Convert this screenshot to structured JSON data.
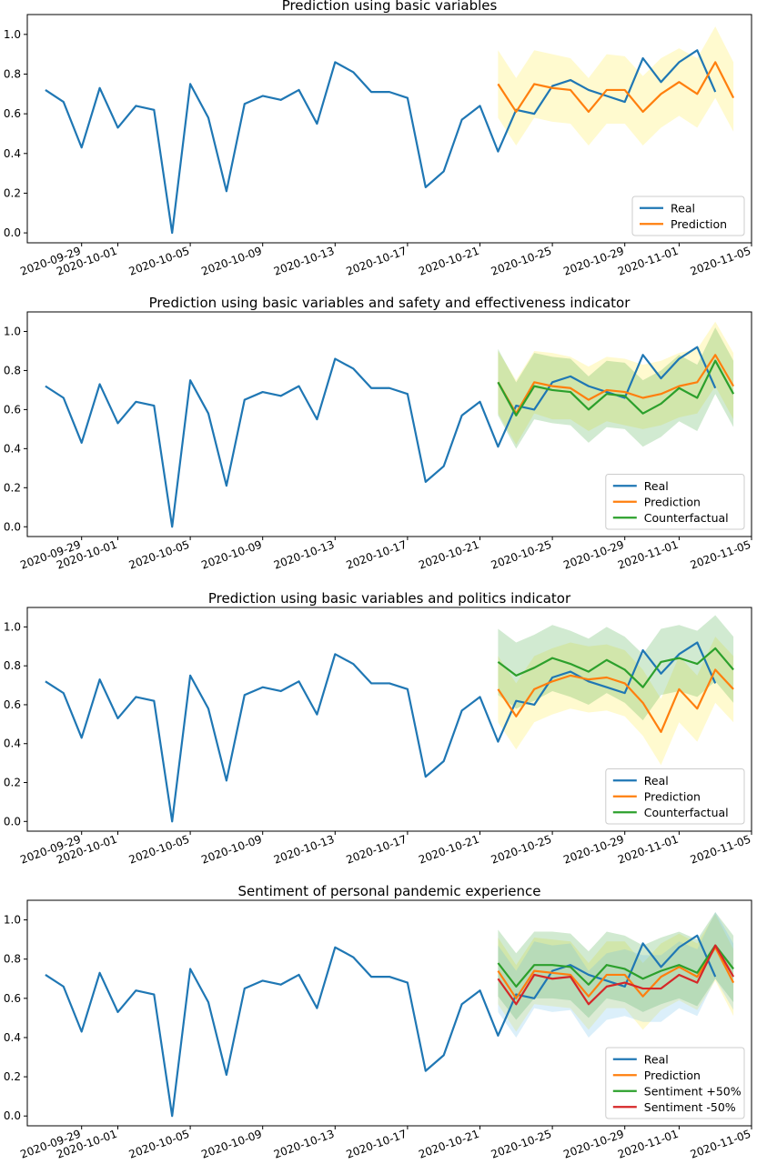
{
  "chart_data": [
    {
      "type": "line",
      "title": "Prediction using basic variables",
      "xlabel": "",
      "ylabel": "",
      "x_range": [
        "2020-09-26",
        "2020-11-05"
      ],
      "ylim": [
        -0.05,
        1.1
      ],
      "yticks": [
        "0.0",
        "0.2",
        "0.4",
        "0.6",
        "0.8",
        "1.0"
      ],
      "xticks": [
        "2020-09-29",
        "2020-10-01",
        "2020-10-05",
        "2020-10-09",
        "2020-10-13",
        "2020-10-17",
        "2020-10-21",
        "2020-10-25",
        "2020-10-29",
        "2020-11-01",
        "2020-11-05"
      ],
      "legend_position": "lower-right",
      "series": [
        {
          "name": "Real",
          "color": "#1f77b4",
          "start": "2020-09-27",
          "values": [
            0.72,
            0.66,
            0.43,
            0.73,
            0.53,
            0.64,
            0.62,
            0.0,
            0.75,
            0.58,
            0.21,
            0.65,
            0.69,
            0.67,
            0.72,
            0.55,
            0.86,
            0.81,
            0.71,
            0.71,
            0.68,
            0.23,
            0.31,
            0.57,
            0.64,
            0.41,
            0.62,
            0.6,
            0.74,
            0.77,
            0.72,
            0.69,
            0.66,
            0.88,
            0.76,
            0.86,
            0.92,
            0.71
          ]
        },
        {
          "name": "Prediction",
          "color": "#ff7f0e",
          "start": "2020-10-22",
          "values": [
            0.75,
            0.61,
            0.75,
            0.73,
            0.72,
            0.61,
            0.72,
            0.72,
            0.61,
            0.7,
            0.76,
            0.7,
            0.86,
            0.68
          ],
          "band": {
            "color": "#fde725",
            "opacity": 0.22,
            "upper": [
              0.92,
              0.78,
              0.92,
              0.9,
              0.88,
              0.78,
              0.9,
              0.89,
              0.79,
              0.88,
              0.93,
              0.88,
              1.04,
              0.86
            ],
            "lower": [
              0.58,
              0.44,
              0.58,
              0.56,
              0.55,
              0.44,
              0.55,
              0.55,
              0.44,
              0.53,
              0.59,
              0.53,
              0.68,
              0.51
            ]
          }
        }
      ]
    },
    {
      "type": "line",
      "title": "Prediction using basic variables and safety and effectiveness indicator",
      "xlabel": "",
      "ylabel": "",
      "x_range": [
        "2020-09-26",
        "2020-11-05"
      ],
      "ylim": [
        -0.05,
        1.1
      ],
      "yticks": [
        "0.0",
        "0.2",
        "0.4",
        "0.6",
        "0.8",
        "1.0"
      ],
      "xticks": [
        "2020-09-29",
        "2020-10-01",
        "2020-10-05",
        "2020-10-09",
        "2020-10-13",
        "2020-10-17",
        "2020-10-21",
        "2020-10-25",
        "2020-10-29",
        "2020-11-01",
        "2020-11-05"
      ],
      "legend_position": "lower-right",
      "series": [
        {
          "name": "Real",
          "color": "#1f77b4",
          "start": "2020-09-27",
          "values": [
            0.72,
            0.66,
            0.43,
            0.73,
            0.53,
            0.64,
            0.62,
            0.0,
            0.75,
            0.58,
            0.21,
            0.65,
            0.69,
            0.67,
            0.72,
            0.55,
            0.86,
            0.81,
            0.71,
            0.71,
            0.68,
            0.23,
            0.31,
            0.57,
            0.64,
            0.41,
            0.62,
            0.6,
            0.74,
            0.77,
            0.72,
            0.69,
            0.66,
            0.88,
            0.76,
            0.86,
            0.92,
            0.71
          ]
        },
        {
          "name": "Prediction",
          "color": "#ff7f0e",
          "start": "2020-10-22",
          "values": [
            0.74,
            0.58,
            0.74,
            0.72,
            0.71,
            0.65,
            0.7,
            0.69,
            0.66,
            0.68,
            0.72,
            0.74,
            0.88,
            0.72
          ],
          "band": {
            "color": "#fde725",
            "opacity": 0.22,
            "upper": [
              0.9,
              0.75,
              0.9,
              0.89,
              0.87,
              0.82,
              0.87,
              0.86,
              0.83,
              0.85,
              0.89,
              0.91,
              1.05,
              0.89
            ],
            "lower": [
              0.58,
              0.42,
              0.58,
              0.55,
              0.55,
              0.49,
              0.54,
              0.52,
              0.5,
              0.52,
              0.56,
              0.58,
              0.72,
              0.55
            ]
          }
        },
        {
          "name": "Counterfactual",
          "color": "#2ca02c",
          "start": "2020-10-22",
          "values": [
            0.74,
            0.57,
            0.72,
            0.7,
            0.69,
            0.6,
            0.68,
            0.67,
            0.58,
            0.63,
            0.71,
            0.66,
            0.85,
            0.68
          ],
          "band": {
            "color": "#2ca02c",
            "opacity": 0.22,
            "upper": [
              0.91,
              0.74,
              0.89,
              0.87,
              0.86,
              0.77,
              0.85,
              0.84,
              0.75,
              0.8,
              0.88,
              0.83,
              1.02,
              0.85
            ],
            "lower": [
              0.57,
              0.4,
              0.55,
              0.53,
              0.52,
              0.43,
              0.51,
              0.5,
              0.41,
              0.46,
              0.54,
              0.49,
              0.68,
              0.51
            ]
          }
        }
      ]
    },
    {
      "type": "line",
      "title": "Prediction using basic variables and politics indicator",
      "xlabel": "",
      "ylabel": "",
      "x_range": [
        "2020-09-26",
        "2020-11-05"
      ],
      "ylim": [
        -0.05,
        1.1
      ],
      "yticks": [
        "0.0",
        "0.2",
        "0.4",
        "0.6",
        "0.8",
        "1.0"
      ],
      "xticks": [
        "2020-09-29",
        "2020-10-01",
        "2020-10-05",
        "2020-10-09",
        "2020-10-13",
        "2020-10-17",
        "2020-10-21",
        "2020-10-25",
        "2020-10-29",
        "2020-11-01",
        "2020-11-05"
      ],
      "legend_position": "lower-right",
      "series": [
        {
          "name": "Real",
          "color": "#1f77b4",
          "start": "2020-09-27",
          "values": [
            0.72,
            0.66,
            0.43,
            0.73,
            0.53,
            0.64,
            0.62,
            0.0,
            0.75,
            0.58,
            0.21,
            0.65,
            0.69,
            0.67,
            0.72,
            0.55,
            0.86,
            0.81,
            0.71,
            0.71,
            0.68,
            0.23,
            0.31,
            0.57,
            0.64,
            0.41,
            0.62,
            0.6,
            0.74,
            0.77,
            0.72,
            0.69,
            0.66,
            0.88,
            0.76,
            0.86,
            0.92,
            0.71
          ]
        },
        {
          "name": "Prediction",
          "color": "#ff7f0e",
          "start": "2020-10-22",
          "values": [
            0.68,
            0.54,
            0.68,
            0.72,
            0.75,
            0.73,
            0.74,
            0.71,
            0.61,
            0.46,
            0.68,
            0.58,
            0.78,
            0.68
          ],
          "band": {
            "color": "#fde725",
            "opacity": 0.22,
            "upper": [
              0.85,
              0.71,
              0.85,
              0.89,
              0.92,
              0.9,
              0.91,
              0.88,
              0.78,
              0.63,
              0.85,
              0.75,
              0.95,
              0.85
            ],
            "lower": [
              0.51,
              0.37,
              0.51,
              0.55,
              0.58,
              0.56,
              0.57,
              0.54,
              0.44,
              0.29,
              0.51,
              0.41,
              0.61,
              0.51
            ]
          }
        },
        {
          "name": "Counterfactual",
          "color": "#2ca02c",
          "start": "2020-10-22",
          "values": [
            0.82,
            0.75,
            0.79,
            0.84,
            0.81,
            0.77,
            0.83,
            0.78,
            0.69,
            0.82,
            0.84,
            0.81,
            0.89,
            0.78
          ],
          "band": {
            "color": "#2ca02c",
            "opacity": 0.22,
            "upper": [
              0.99,
              0.92,
              0.96,
              1.01,
              0.98,
              0.94,
              1.0,
              0.95,
              0.86,
              0.99,
              1.01,
              0.98,
              1.06,
              0.95
            ],
            "lower": [
              0.65,
              0.58,
              0.62,
              0.67,
              0.64,
              0.6,
              0.66,
              0.61,
              0.52,
              0.65,
              0.67,
              0.64,
              0.72,
              0.61
            ]
          }
        }
      ]
    },
    {
      "type": "line",
      "title": "Sentiment of personal pandemic experience",
      "xlabel": "",
      "ylabel": "",
      "x_range": [
        "2020-09-26",
        "2020-11-05"
      ],
      "ylim": [
        -0.05,
        1.1
      ],
      "yticks": [
        "0.0",
        "0.2",
        "0.4",
        "0.6",
        "0.8",
        "1.0"
      ],
      "xticks": [
        "2020-09-29",
        "2020-10-01",
        "2020-10-05",
        "2020-10-09",
        "2020-10-13",
        "2020-10-17",
        "2020-10-21",
        "2020-10-25",
        "2020-10-29",
        "2020-11-01",
        "2020-11-05"
      ],
      "legend_position": "lower-right",
      "series": [
        {
          "name": "Real",
          "color": "#1f77b4",
          "start": "2020-09-27",
          "values": [
            0.72,
            0.66,
            0.43,
            0.73,
            0.53,
            0.64,
            0.62,
            0.0,
            0.75,
            0.58,
            0.21,
            0.65,
            0.69,
            0.67,
            0.72,
            0.55,
            0.86,
            0.81,
            0.71,
            0.71,
            0.68,
            0.23,
            0.31,
            0.57,
            0.64,
            0.41,
            0.62,
            0.6,
            0.74,
            0.77,
            0.72,
            0.69,
            0.66,
            0.88,
            0.76,
            0.86,
            0.92,
            0.71
          ]
        },
        {
          "name": "Prediction",
          "color": "#ff7f0e",
          "start": "2020-10-22",
          "values": [
            0.74,
            0.6,
            0.74,
            0.73,
            0.72,
            0.61,
            0.72,
            0.72,
            0.61,
            0.71,
            0.76,
            0.71,
            0.86,
            0.68
          ],
          "band": {
            "color": "#fde725",
            "opacity": 0.22,
            "upper": [
              0.91,
              0.77,
              0.91,
              0.9,
              0.89,
              0.78,
              0.89,
              0.89,
              0.78,
              0.88,
              0.93,
              0.88,
              1.03,
              0.85
            ],
            "lower": [
              0.57,
              0.43,
              0.57,
              0.56,
              0.55,
              0.44,
              0.55,
              0.55,
              0.44,
              0.54,
              0.59,
              0.54,
              0.69,
              0.51
            ]
          }
        },
        {
          "name": "Sentiment +50%",
          "color": "#2ca02c",
          "start": "2020-10-22",
          "values": [
            0.78,
            0.66,
            0.77,
            0.77,
            0.76,
            0.67,
            0.77,
            0.75,
            0.7,
            0.74,
            0.77,
            0.73,
            0.87,
            0.75
          ],
          "band": {
            "color": "#2ca02c",
            "opacity": 0.22,
            "upper": [
              0.95,
              0.83,
              0.94,
              0.94,
              0.93,
              0.84,
              0.94,
              0.92,
              0.87,
              0.91,
              0.94,
              0.9,
              1.04,
              0.92
            ],
            "lower": [
              0.61,
              0.49,
              0.6,
              0.6,
              0.59,
              0.5,
              0.6,
              0.58,
              0.53,
              0.57,
              0.6,
              0.56,
              0.7,
              0.58
            ]
          }
        },
        {
          "name": "Sentiment -50%",
          "color": "#d62728",
          "start": "2020-10-22",
          "values": [
            0.7,
            0.57,
            0.72,
            0.7,
            0.71,
            0.57,
            0.66,
            0.68,
            0.65,
            0.65,
            0.72,
            0.68,
            0.87,
            0.71
          ],
          "band": {
            "color": "#5ab4e8",
            "opacity": 0.22,
            "upper": [
              0.87,
              0.74,
              0.89,
              0.87,
              0.88,
              0.74,
              0.83,
              0.85,
              0.82,
              0.82,
              0.89,
              0.85,
              1.04,
              0.88
            ],
            "lower": [
              0.53,
              0.4,
              0.55,
              0.53,
              0.54,
              0.4,
              0.49,
              0.51,
              0.48,
              0.48,
              0.55,
              0.51,
              0.7,
              0.54
            ]
          }
        }
      ]
    }
  ]
}
